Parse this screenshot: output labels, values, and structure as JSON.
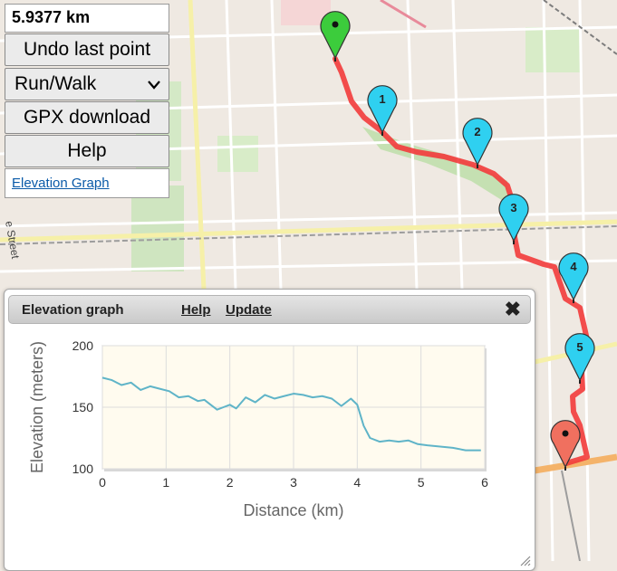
{
  "controls": {
    "distance": "5.9377 km",
    "undo_label": "Undo last point",
    "activity_select": "Run/Walk",
    "gpx_label": "GPX download",
    "help_label": "Help",
    "elevation_link": "Elevation Graph"
  },
  "map": {
    "street_label": "e Street",
    "markers": [
      {
        "label": "",
        "color": "#3ccc3c"
      },
      {
        "label": "1",
        "color": "#2fd0f0"
      },
      {
        "label": "2",
        "color": "#2fd0f0"
      },
      {
        "label": "3",
        "color": "#2fd0f0"
      },
      {
        "label": "4",
        "color": "#2fd0f0"
      },
      {
        "label": "5",
        "color": "#2fd0f0"
      },
      {
        "label": "",
        "color": "#f0705f"
      }
    ],
    "route_color": "#f23b3b"
  },
  "elevation_panel": {
    "title": "Elevation graph",
    "help_link": "Help",
    "update_link": "Update",
    "close_icon": "close-x-icon"
  },
  "chart_data": {
    "type": "line",
    "title": "",
    "xlabel": "Distance (km)",
    "ylabel": "Elevation (meters)",
    "xlim": [
      0,
      6
    ],
    "ylim": [
      100,
      200
    ],
    "x_ticks": [
      "0",
      "1",
      "2",
      "3",
      "4",
      "5",
      "6"
    ],
    "y_ticks": [
      "100",
      "150",
      "200"
    ],
    "grid": true,
    "line_color": "#5fb4c8",
    "series": [
      {
        "x": [
          0,
          0.15,
          0.3,
          0.45,
          0.6,
          0.75,
          0.9,
          1.05,
          1.2,
          1.35,
          1.5,
          1.6,
          1.7,
          1.8,
          1.9,
          2.0,
          2.1,
          2.25,
          2.4,
          2.55,
          2.7,
          2.85,
          3.0,
          3.15,
          3.3,
          3.45,
          3.6,
          3.75,
          3.9,
          4.0,
          4.1,
          4.2,
          4.35,
          4.5,
          4.65,
          4.8,
          4.95,
          5.1,
          5.3,
          5.5,
          5.7,
          5.94
        ],
        "values": [
          174,
          172,
          168,
          170,
          164,
          167,
          165,
          163,
          158,
          159,
          155,
          156,
          152,
          148,
          150,
          152,
          149,
          158,
          154,
          160,
          157,
          159,
          161,
          160,
          158,
          159,
          157,
          151,
          157,
          152,
          135,
          125,
          122,
          123,
          122,
          123,
          120,
          119,
          118,
          117,
          115,
          115
        ]
      }
    ]
  }
}
